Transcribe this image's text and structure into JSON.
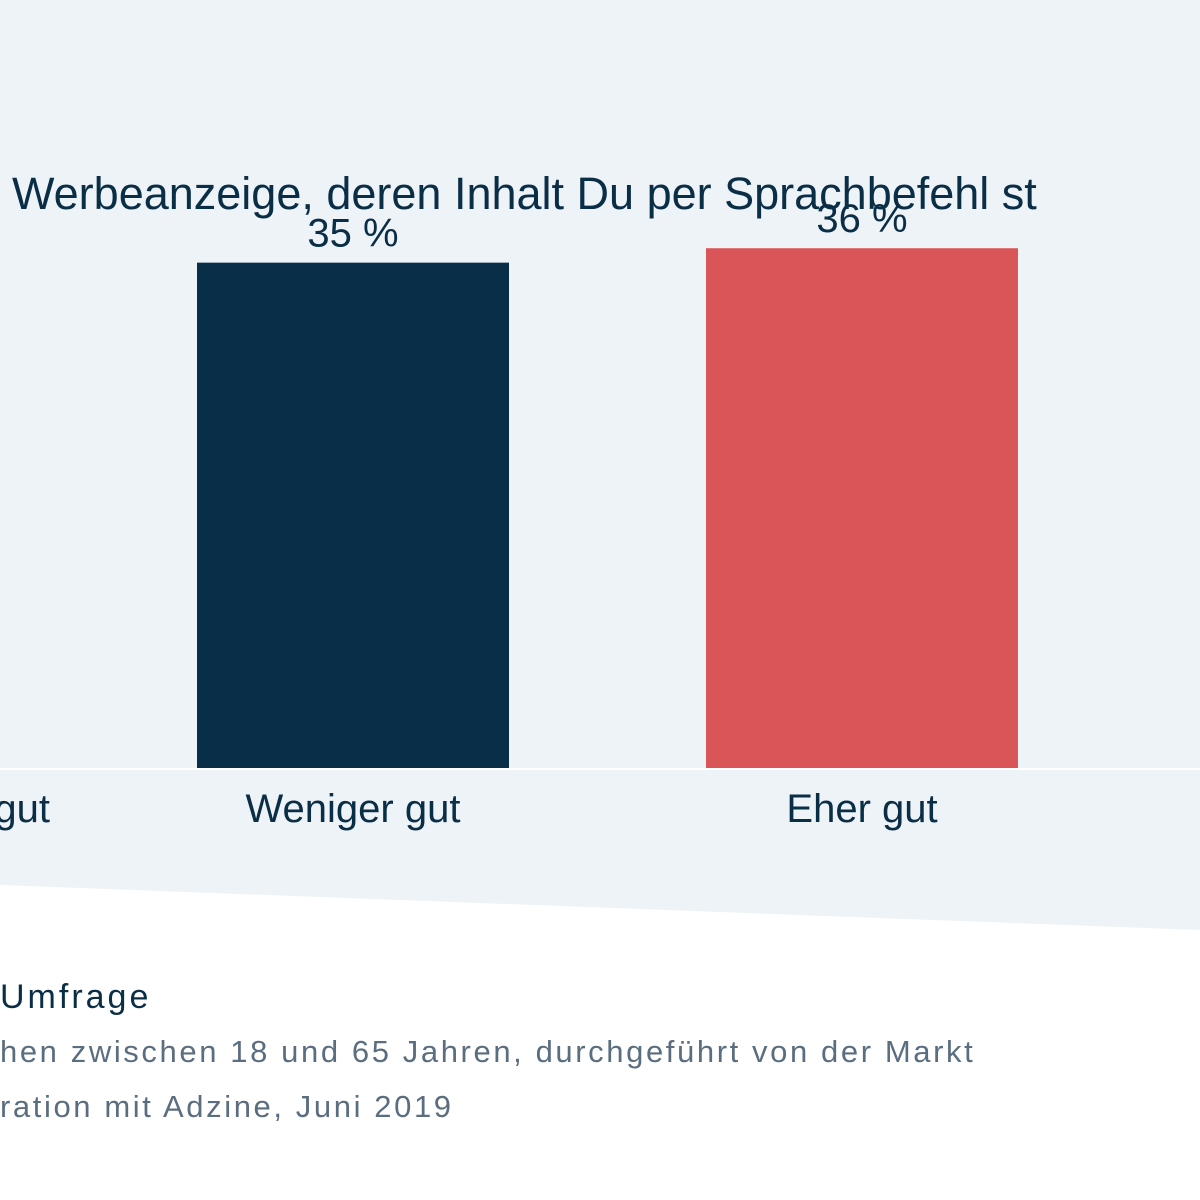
{
  "title": "Werbeanzeige, deren Inhalt Du per Sprachbefehl st",
  "footer": {
    "heading": "Umfrage",
    "lines": [
      "hen zwischen 18 und 65 Jahren, durchgeführt von der Markt",
      "ration mit Adzine, Juni 2019"
    ]
  },
  "colors": {
    "panel": "#eef3f7",
    "text": "#0b2e47",
    "muted": "#5b6e80",
    "series": [
      "#2aa0e4",
      "#082f47",
      "#d95558"
    ]
  },
  "chart_data": {
    "type": "bar",
    "categories": [
      "gut",
      "Weniger gut",
      "Eher gut"
    ],
    "values": [
      null,
      35,
      36
    ],
    "value_labels": [
      "",
      "35 %",
      "36 %"
    ],
    "ylim": [
      0,
      50
    ],
    "grid": false,
    "title": "",
    "xlabel": "",
    "ylabel": ""
  }
}
